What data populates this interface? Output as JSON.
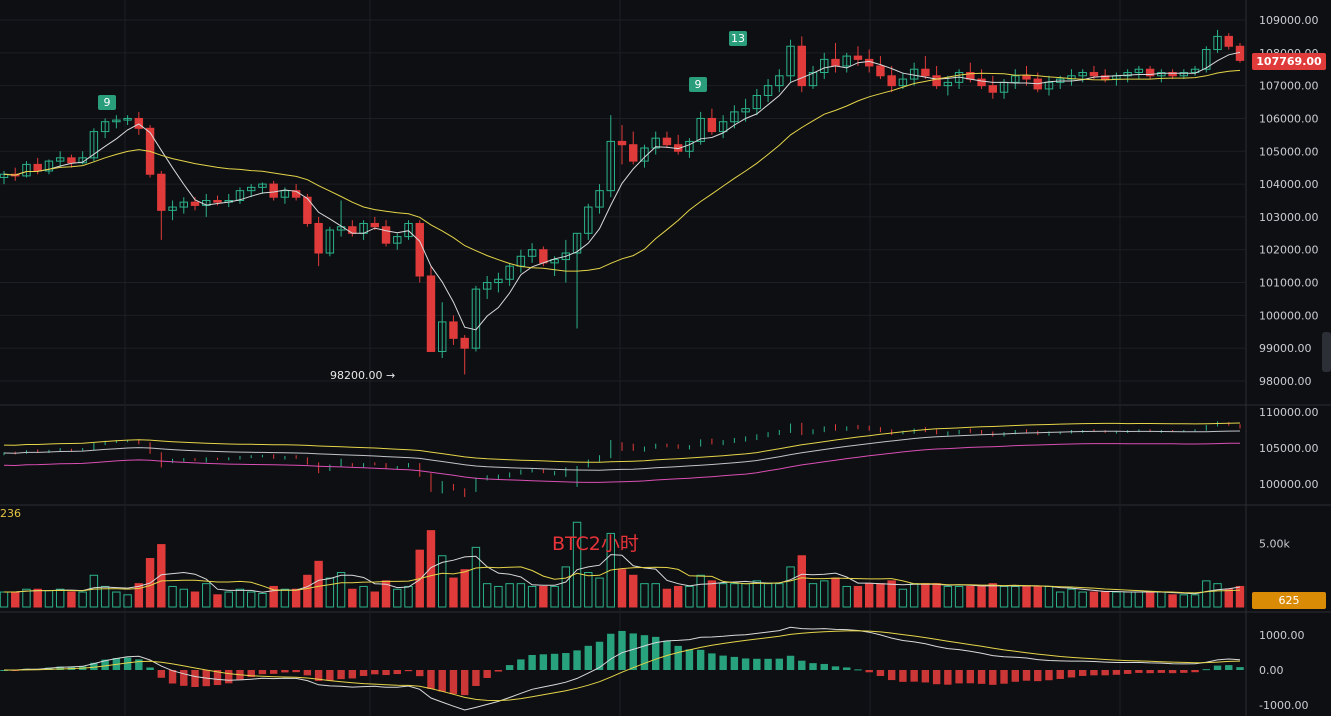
{
  "title": "BTC2小时",
  "colors": {
    "background": "#0e0f12",
    "grid": "#1c1f25",
    "up": "#2bb28a",
    "down": "#e03b3b",
    "ma_fast": "#d9d9d9",
    "ma_slow": "#e4d44a",
    "lower_band": "#d94fb5"
  },
  "price_axis_ticks": [
    "109000.00",
    "108000.00",
    "107000.00",
    "106000.00",
    "105000.00",
    "104000.00",
    "103000.00",
    "102000.00",
    "101000.00",
    "100000.00",
    "99000.00",
    "98000.00"
  ],
  "last_price": "107769.00",
  "low_annotation": "98200.00 →",
  "td_badges": [
    "9",
    "9",
    "13"
  ],
  "overview_axis_ticks": [
    "110000.00",
    "105000.00",
    "100000.00"
  ],
  "volume_axis_ticks": [
    "5.00k"
  ],
  "volume_value": "625",
  "volume_left_label": "236",
  "macd_axis_ticks": [
    "1000.00",
    "0.00",
    "-1000.00"
  ],
  "chart_data": {
    "type": "candlestick",
    "title": "BTC2小时",
    "ylim": [
      97700,
      109500
    ],
    "series_note": "",
    "candles": [
      [
        104200,
        104400,
        104000,
        104300
      ],
      [
        104300,
        104500,
        104100,
        104250
      ],
      [
        104250,
        104700,
        104200,
        104600
      ],
      [
        104600,
        104800,
        104300,
        104400
      ],
      [
        104400,
        104750,
        104300,
        104700
      ],
      [
        104700,
        105000,
        104500,
        104800
      ],
      [
        104800,
        104900,
        104500,
        104650
      ],
      [
        104650,
        105000,
        104600,
        104800
      ],
      [
        104800,
        105700,
        104700,
        105600
      ],
      [
        105600,
        106000,
        105400,
        105900
      ],
      [
        105900,
        106100,
        105700,
        105950
      ],
      [
        105950,
        106100,
        105800,
        106000
      ],
      [
        106000,
        106200,
        105500,
        105700
      ],
      [
        105700,
        105800,
        104200,
        104300
      ],
      [
        104300,
        104400,
        102300,
        103200
      ],
      [
        103200,
        103500,
        102900,
        103300
      ],
      [
        103300,
        103600,
        103100,
        103450
      ],
      [
        103450,
        103600,
        103200,
        103350
      ],
      [
        103350,
        103700,
        103000,
        103500
      ],
      [
        103500,
        103650,
        103350,
        103450
      ],
      [
        103450,
        103700,
        103300,
        103500
      ],
      [
        103500,
        103900,
        103400,
        103800
      ],
      [
        103800,
        104000,
        103600,
        103900
      ],
      [
        103900,
        104050,
        103700,
        104000
      ],
      [
        104000,
        104100,
        103500,
        103600
      ],
      [
        103600,
        103900,
        103400,
        103800
      ],
      [
        103800,
        104000,
        103500,
        103600
      ],
      [
        103600,
        103700,
        102700,
        102800
      ],
      [
        102800,
        103000,
        101500,
        101900
      ],
      [
        101900,
        102700,
        101800,
        102600
      ],
      [
        102600,
        103500,
        102400,
        102700
      ],
      [
        102700,
        102900,
        102400,
        102500
      ],
      [
        102500,
        102900,
        102300,
        102800
      ],
      [
        102800,
        103000,
        102600,
        102700
      ],
      [
        102700,
        102900,
        102100,
        102200
      ],
      [
        102200,
        102500,
        102000,
        102400
      ],
      [
        102400,
        102900,
        102300,
        102800
      ],
      [
        102800,
        102900,
        101000,
        101200
      ],
      [
        101200,
        101500,
        98900,
        98900
      ],
      [
        98900,
        100400,
        98700,
        99800
      ],
      [
        99800,
        100000,
        99100,
        99300
      ],
      [
        99300,
        99400,
        98200,
        99000
      ],
      [
        99000,
        100900,
        98900,
        100800
      ],
      [
        100800,
        101200,
        100500,
        101000
      ],
      [
        101000,
        101300,
        100700,
        101100
      ],
      [
        101100,
        101600,
        100900,
        101500
      ],
      [
        101500,
        102000,
        101300,
        101800
      ],
      [
        101800,
        102200,
        101600,
        102000
      ],
      [
        102000,
        102100,
        101500,
        101600
      ],
      [
        101600,
        101800,
        101200,
        101700
      ],
      [
        101700,
        102300,
        101000,
        101900
      ],
      [
        101900,
        102500,
        99600,
        102500
      ],
      [
        102500,
        103400,
        102300,
        103300
      ],
      [
        103300,
        104000,
        103100,
        103800
      ],
      [
        103800,
        106100,
        103600,
        105300
      ],
      [
        105300,
        105800,
        104600,
        105200
      ],
      [
        105200,
        105600,
        104600,
        104700
      ],
      [
        104700,
        105200,
        104500,
        105100
      ],
      [
        105100,
        105600,
        104900,
        105400
      ],
      [
        105400,
        105600,
        105100,
        105200
      ],
      [
        105200,
        105500,
        104900,
        105000
      ],
      [
        105000,
        105400,
        104800,
        105300
      ],
      [
        105300,
        106200,
        105200,
        106000
      ],
      [
        106000,
        106300,
        105500,
        105600
      ],
      [
        105600,
        106100,
        105400,
        105900
      ],
      [
        105900,
        106400,
        105700,
        106200
      ],
      [
        106200,
        106600,
        105900,
        106300
      ],
      [
        106300,
        106900,
        106100,
        106700
      ],
      [
        106700,
        107200,
        106500,
        107000
      ],
      [
        107000,
        107500,
        106800,
        107300
      ],
      [
        107300,
        108400,
        107100,
        108200
      ],
      [
        108200,
        108500,
        106800,
        107000
      ],
      [
        107000,
        107600,
        106900,
        107400
      ],
      [
        107400,
        108000,
        107200,
        107800
      ],
      [
        107800,
        108300,
        107400,
        107600
      ],
      [
        107600,
        108000,
        107400,
        107900
      ],
      [
        107900,
        108200,
        107600,
        107800
      ],
      [
        107800,
        108100,
        107400,
        107600
      ],
      [
        107600,
        107900,
        107200,
        107300
      ],
      [
        107300,
        107600,
        106800,
        107000
      ],
      [
        107000,
        107400,
        106900,
        107200
      ],
      [
        107200,
        107700,
        107000,
        107500
      ],
      [
        107500,
        107900,
        107200,
        107300
      ],
      [
        107300,
        107600,
        106900,
        107000
      ],
      [
        107000,
        107300,
        106700,
        107100
      ],
      [
        107100,
        107500,
        106900,
        107400
      ],
      [
        107400,
        107700,
        107100,
        107200
      ],
      [
        107200,
        107500,
        106900,
        107000
      ],
      [
        107000,
        107300,
        106600,
        106800
      ],
      [
        106800,
        107200,
        106600,
        107100
      ],
      [
        107100,
        107500,
        106900,
        107300
      ],
      [
        107300,
        107600,
        107000,
        107200
      ],
      [
        107200,
        107400,
        106800,
        106900
      ],
      [
        106900,
        107300,
        106700,
        107100
      ],
      [
        107100,
        107300,
        106900,
        107200
      ],
      [
        107200,
        107500,
        107000,
        107300
      ],
      [
        107300,
        107500,
        107100,
        107400
      ],
      [
        107400,
        107600,
        107200,
        107300
      ],
      [
        107300,
        107500,
        107100,
        107200
      ],
      [
        107200,
        107400,
        107000,
        107300
      ],
      [
        107300,
        107500,
        107100,
        107400
      ],
      [
        107400,
        107600,
        107200,
        107500
      ],
      [
        107500,
        107600,
        107200,
        107300
      ],
      [
        107300,
        107500,
        107100,
        107400
      ],
      [
        107400,
        107500,
        107200,
        107300
      ],
      [
        107300,
        107500,
        107200,
        107400
      ],
      [
        107400,
        107600,
        107300,
        107500
      ],
      [
        107500,
        108200,
        107400,
        108100
      ],
      [
        108100,
        108700,
        108000,
        108500
      ],
      [
        108500,
        108600,
        108100,
        108200
      ],
      [
        108200,
        108300,
        107700,
        107769
      ]
    ]
  }
}
